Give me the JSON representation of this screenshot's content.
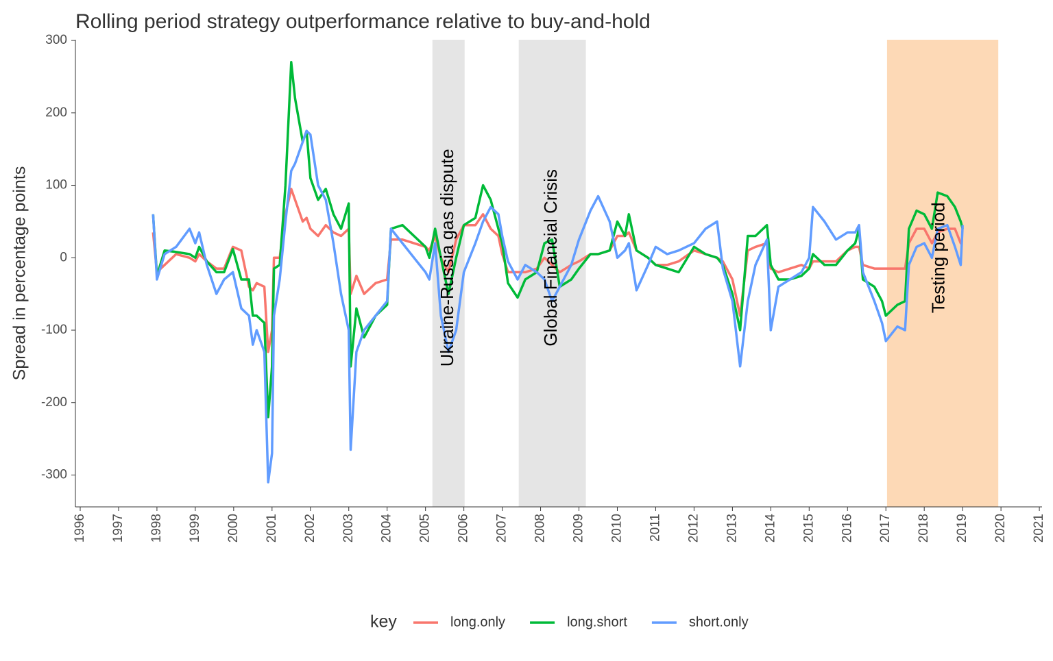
{
  "chart_data": {
    "type": "line",
    "title": "Rolling period strategy outperformance relative to buy-and-hold",
    "y_label": "Spread in percentage points",
    "legend_title": "key",
    "legend_position": "bottom",
    "grid": false,
    "xlim": [
      1995.875,
      2021.07
    ],
    "ylim": [
      -344,
      301
    ],
    "xticks": [
      1996,
      1997,
      1998,
      1999,
      2000,
      2001,
      2002,
      2003,
      2004,
      2005,
      2006,
      2007,
      2008,
      2009,
      2010,
      2011,
      2012,
      2013,
      2014,
      2015,
      2016,
      2017,
      2018,
      2019,
      2020,
      2021
    ],
    "yticks": [
      -300,
      -200,
      -100,
      0,
      100,
      200,
      300
    ],
    "shaded_regions": [
      {
        "start": 2005.18,
        "end": 2006.02,
        "color": "#e5e5e5"
      },
      {
        "start": 2007.43,
        "end": 2009.18,
        "color": "#e5e5e5"
      },
      {
        "start": 2017.03,
        "end": 2019.93,
        "color": "#fdd9b6"
      }
    ],
    "annotations": [
      {
        "text": "Ukraine-Russia gas dispute",
        "x": 2005.6,
        "y": 0
      },
      {
        "text": "Global Financial Crisis",
        "x": 2008.3,
        "y": 0
      },
      {
        "text": "Testing period",
        "x": 2018.4,
        "y": 0
      }
    ],
    "x": [
      1997.9,
      1998.0,
      1998.2,
      1998.5,
      1998.85,
      1999.0,
      1999.1,
      1999.3,
      1999.55,
      1999.75,
      1999.98,
      2000.2,
      2000.4,
      2000.5,
      2000.6,
      2000.8,
      2000.9,
      2001.0,
      2001.05,
      2001.2,
      2001.35,
      2001.5,
      2001.6,
      2001.8,
      2001.9,
      2002.0,
      2002.2,
      2002.4,
      2002.6,
      2002.8,
      2003.0,
      2003.05,
      2003.2,
      2003.4,
      2003.7,
      2004.0,
      2004.1,
      2004.4,
      2004.7,
      2005.0,
      2005.1,
      2005.25,
      2005.4,
      2005.6,
      2005.8,
      2006.0,
      2006.3,
      2006.5,
      2006.7,
      2006.9,
      2007.0,
      2007.15,
      2007.4,
      2007.6,
      2007.9,
      2008.1,
      2008.3,
      2008.5,
      2008.8,
      2009.0,
      2009.3,
      2009.5,
      2009.8,
      2010.0,
      2010.2,
      2010.3,
      2010.5,
      2010.8,
      2011.0,
      2011.3,
      2011.6,
      2012.0,
      2012.3,
      2012.6,
      2012.75,
      2013.0,
      2013.2,
      2013.4,
      2013.6,
      2013.9,
      2014.0,
      2014.2,
      2014.5,
      2014.8,
      2015.0,
      2015.1,
      2015.4,
      2015.7,
      2016.0,
      2016.2,
      2016.3,
      2016.4,
      2016.7,
      2016.9,
      2017.0,
      2017.3,
      2017.5,
      2017.6,
      2017.8,
      2018.0,
      2018.2,
      2018.35,
      2018.6,
      2018.8,
      2018.95,
      2019.0
    ],
    "series": [
      {
        "name": "long.only",
        "color": "#F8766D",
        "values": [
          35,
          -20,
          -10,
          5,
          0,
          -5,
          5,
          -5,
          -15,
          -15,
          15,
          10,
          -40,
          -45,
          -35,
          -40,
          -130,
          -100,
          0,
          0,
          60,
          95,
          80,
          50,
          55,
          40,
          30,
          45,
          35,
          30,
          40,
          -50,
          -25,
          -50,
          -35,
          -30,
          25,
          25,
          20,
          15,
          10,
          30,
          0,
          -20,
          25,
          45,
          45,
          60,
          40,
          30,
          5,
          -20,
          -20,
          -20,
          -15,
          0,
          -10,
          -20,
          -10,
          -5,
          5,
          5,
          10,
          30,
          30,
          35,
          10,
          0,
          -10,
          -10,
          -5,
          10,
          5,
          0,
          -5,
          -30,
          -80,
          10,
          15,
          20,
          -15,
          -20,
          -15,
          -10,
          -15,
          -5,
          -5,
          -5,
          10,
          15,
          15,
          -10,
          -15,
          -15,
          -15,
          -15,
          -15,
          20,
          40,
          40,
          20,
          35,
          40,
          40,
          20,
          20
        ]
      },
      {
        "name": "long.short",
        "color": "#00BA38",
        "values": [
          60,
          -25,
          10,
          8,
          5,
          0,
          15,
          -5,
          -20,
          -20,
          12,
          -30,
          -30,
          -80,
          -80,
          -90,
          -220,
          -150,
          -15,
          -10,
          100,
          270,
          220,
          160,
          175,
          110,
          80,
          95,
          60,
          40,
          75,
          -150,
          -70,
          -110,
          -80,
          -65,
          40,
          45,
          30,
          15,
          0,
          40,
          0,
          -50,
          0,
          45,
          55,
          100,
          80,
          40,
          20,
          -35,
          -55,
          -30,
          -20,
          20,
          25,
          -40,
          -30,
          -15,
          5,
          5,
          10,
          50,
          30,
          60,
          10,
          0,
          -10,
          -15,
          -20,
          15,
          5,
          0,
          -10,
          -50,
          -100,
          30,
          30,
          45,
          -10,
          -30,
          -30,
          -25,
          -15,
          5,
          -10,
          -10,
          10,
          20,
          40,
          -30,
          -40,
          -60,
          -80,
          -65,
          -60,
          40,
          65,
          60,
          40,
          90,
          85,
          70,
          50,
          40
        ]
      },
      {
        "name": "short.only",
        "color": "#619CFF",
        "values": [
          60,
          -30,
          5,
          15,
          40,
          20,
          35,
          -10,
          -50,
          -30,
          -20,
          -70,
          -80,
          -120,
          -100,
          -130,
          -310,
          -270,
          -80,
          -30,
          50,
          120,
          130,
          160,
          175,
          170,
          100,
          80,
          20,
          -50,
          -100,
          -265,
          -130,
          -100,
          -80,
          -60,
          40,
          20,
          0,
          -20,
          -30,
          20,
          -80,
          -130,
          -100,
          -20,
          20,
          50,
          70,
          60,
          30,
          -5,
          -30,
          -10,
          -20,
          -30,
          -60,
          -40,
          -10,
          25,
          65,
          85,
          50,
          0,
          10,
          20,
          -45,
          -10,
          15,
          5,
          10,
          20,
          40,
          50,
          -15,
          -60,
          -150,
          -60,
          -10,
          25,
          -100,
          -40,
          -30,
          -20,
          0,
          70,
          50,
          25,
          35,
          35,
          45,
          -20,
          -60,
          -90,
          -115,
          -95,
          -100,
          -10,
          15,
          20,
          0,
          40,
          45,
          15,
          -10,
          45
        ]
      }
    ]
  }
}
